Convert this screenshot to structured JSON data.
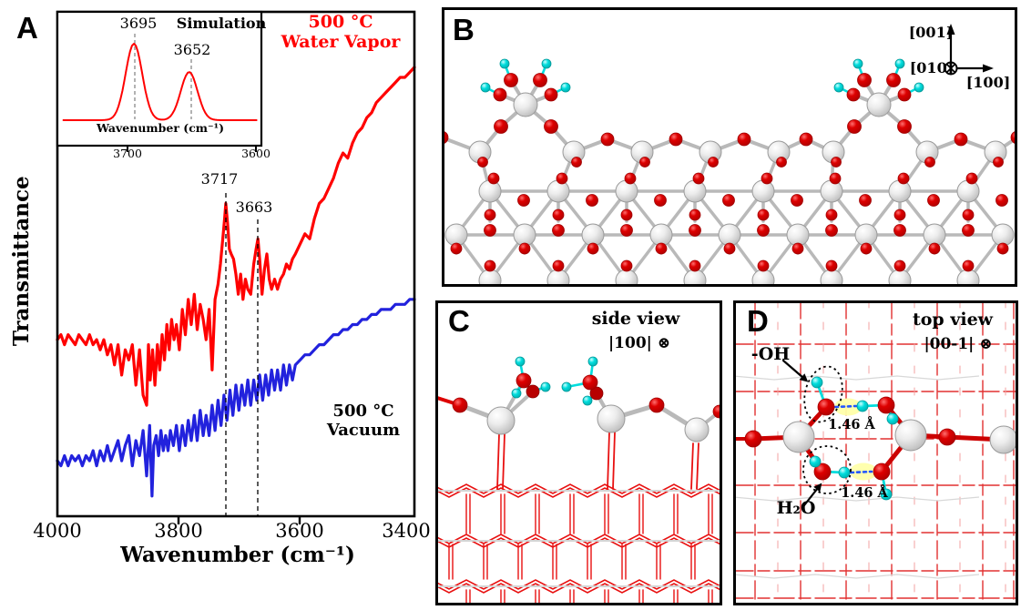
{
  "panels": {
    "a": {
      "letter": "A",
      "ylabel": "Transmittance",
      "xlabel": "Wavenumber (cm⁻¹)",
      "x_ticks": [
        "4000",
        "3800",
        "3600",
        "3400"
      ],
      "peak_labels": [
        "3717",
        "3663"
      ],
      "labels": {
        "water_vapor_line1": "500 °C",
        "water_vapor_line2": "Water Vapor",
        "vacuum_line1": "500 °C",
        "vacuum_line2": "Vacuum"
      },
      "inset": {
        "title": "Simulation",
        "peaks": [
          "3695",
          "3652"
        ],
        "xlabel": "Wavenumber (cm⁻¹)",
        "x_ticks": [
          "3700",
          "3600"
        ]
      }
    },
    "b": {
      "letter": "B",
      "axis_labels": {
        "up": "[001]",
        "into_page": "[010]",
        "right": "[100]"
      }
    },
    "c": {
      "letter": "C",
      "view_label": "side view",
      "orientation_label": "|100| ⊗"
    },
    "d": {
      "letter": "D",
      "view_label": "top view",
      "orientation_label": "|00-1| ⊗",
      "oh_label": "-OH",
      "h2o_label": "H₂O",
      "bond_length_top": "1.46 Å",
      "bond_length_bottom": "1.46 Å"
    }
  },
  "chart_data": {
    "type": "line",
    "xlabel": "Wavenumber (cm⁻¹)",
    "ylabel": "Transmittance",
    "x_range": [
      4000,
      3400
    ],
    "x_axis_reversed": true,
    "y_unit": "arbitrary units 0-100",
    "annotations": [
      {
        "x": 3717,
        "label": "3717"
      },
      {
        "x": 3663,
        "label": "3663"
      }
    ],
    "series": [
      {
        "name": "500 °C Water Vapor",
        "color": "#ff0000",
        "points": [
          [
            4000,
            35
          ],
          [
            3994,
            36
          ],
          [
            3988,
            34
          ],
          [
            3982,
            36
          ],
          [
            3976,
            35
          ],
          [
            3970,
            34
          ],
          [
            3964,
            36
          ],
          [
            3958,
            35
          ],
          [
            3952,
            34
          ],
          [
            3946,
            36
          ],
          [
            3940,
            34
          ],
          [
            3934,
            35
          ],
          [
            3928,
            33
          ],
          [
            3922,
            35
          ],
          [
            3916,
            32
          ],
          [
            3910,
            34
          ],
          [
            3904,
            30
          ],
          [
            3898,
            34
          ],
          [
            3892,
            28
          ],
          [
            3886,
            33
          ],
          [
            3880,
            31
          ],
          [
            3874,
            34
          ],
          [
            3868,
            26
          ],
          [
            3862,
            33
          ],
          [
            3856,
            24
          ],
          [
            3850,
            22
          ],
          [
            3847,
            34
          ],
          [
            3844,
            27
          ],
          [
            3840,
            33
          ],
          [
            3836,
            26
          ],
          [
            3832,
            34
          ],
          [
            3828,
            29
          ],
          [
            3824,
            36
          ],
          [
            3820,
            31
          ],
          [
            3816,
            38
          ],
          [
            3812,
            33
          ],
          [
            3808,
            39
          ],
          [
            3804,
            35
          ],
          [
            3800,
            38
          ],
          [
            3795,
            33
          ],
          [
            3790,
            41
          ],
          [
            3785,
            36
          ],
          [
            3780,
            43
          ],
          [
            3775,
            38
          ],
          [
            3770,
            44
          ],
          [
            3765,
            37
          ],
          [
            3760,
            42
          ],
          [
            3755,
            39
          ],
          [
            3750,
            35
          ],
          [
            3745,
            41
          ],
          [
            3740,
            29
          ],
          [
            3735,
            43
          ],
          [
            3730,
            46
          ],
          [
            3726,
            50
          ],
          [
            3722,
            55
          ],
          [
            3719,
            59
          ],
          [
            3717,
            62
          ],
          [
            3714,
            58
          ],
          [
            3711,
            53
          ],
          [
            3708,
            52
          ],
          [
            3704,
            51
          ],
          [
            3700,
            48
          ],
          [
            3696,
            44
          ],
          [
            3692,
            48
          ],
          [
            3688,
            43
          ],
          [
            3684,
            47
          ],
          [
            3680,
            45
          ],
          [
            3675,
            44
          ],
          [
            3670,
            50
          ],
          [
            3666,
            53
          ],
          [
            3663,
            55
          ],
          [
            3660,
            51
          ],
          [
            3656,
            44
          ],
          [
            3652,
            49
          ],
          [
            3648,
            52
          ],
          [
            3644,
            47
          ],
          [
            3640,
            45
          ],
          [
            3635,
            47
          ],
          [
            3630,
            45
          ],
          [
            3625,
            47
          ],
          [
            3620,
            48
          ],
          [
            3615,
            50
          ],
          [
            3610,
            49
          ],
          [
            3605,
            51
          ],
          [
            3600,
            52
          ],
          [
            3592,
            54
          ],
          [
            3584,
            56
          ],
          [
            3576,
            55
          ],
          [
            3568,
            59
          ],
          [
            3560,
            62
          ],
          [
            3552,
            63
          ],
          [
            3544,
            65
          ],
          [
            3536,
            67
          ],
          [
            3528,
            70
          ],
          [
            3520,
            72
          ],
          [
            3512,
            71
          ],
          [
            3504,
            74
          ],
          [
            3496,
            76
          ],
          [
            3488,
            77
          ],
          [
            3480,
            79
          ],
          [
            3472,
            80
          ],
          [
            3464,
            82
          ],
          [
            3456,
            83
          ],
          [
            3448,
            84
          ],
          [
            3440,
            85
          ],
          [
            3432,
            86
          ],
          [
            3424,
            87
          ],
          [
            3416,
            87
          ],
          [
            3408,
            88
          ],
          [
            3400,
            89
          ]
        ]
      },
      {
        "name": "500 °C Vacuum",
        "color": "#2222dd",
        "points": [
          [
            4000,
            11
          ],
          [
            3994,
            10
          ],
          [
            3988,
            12
          ],
          [
            3982,
            10
          ],
          [
            3976,
            12
          ],
          [
            3970,
            11
          ],
          [
            3964,
            12
          ],
          [
            3958,
            10
          ],
          [
            3952,
            12
          ],
          [
            3946,
            11
          ],
          [
            3940,
            13
          ],
          [
            3934,
            10
          ],
          [
            3928,
            13
          ],
          [
            3922,
            11
          ],
          [
            3916,
            14
          ],
          [
            3910,
            11
          ],
          [
            3904,
            13
          ],
          [
            3898,
            15
          ],
          [
            3892,
            11
          ],
          [
            3886,
            14
          ],
          [
            3880,
            16
          ],
          [
            3874,
            10
          ],
          [
            3868,
            15
          ],
          [
            3862,
            12
          ],
          [
            3856,
            17
          ],
          [
            3850,
            8
          ],
          [
            3845,
            18
          ],
          [
            3841,
            4
          ],
          [
            3838,
            14
          ],
          [
            3834,
            16
          ],
          [
            3830,
            12
          ],
          [
            3826,
            17
          ],
          [
            3822,
            13
          ],
          [
            3818,
            16
          ],
          [
            3814,
            13
          ],
          [
            3810,
            17
          ],
          [
            3805,
            14
          ],
          [
            3800,
            18
          ],
          [
            3795,
            13
          ],
          [
            3790,
            18
          ],
          [
            3785,
            14
          ],
          [
            3780,
            19
          ],
          [
            3775,
            15
          ],
          [
            3770,
            20
          ],
          [
            3765,
            15
          ],
          [
            3760,
            21
          ],
          [
            3755,
            16
          ],
          [
            3750,
            20
          ],
          [
            3745,
            16
          ],
          [
            3740,
            22
          ],
          [
            3735,
            17
          ],
          [
            3730,
            23
          ],
          [
            3725,
            18
          ],
          [
            3720,
            24
          ],
          [
            3715,
            19
          ],
          [
            3710,
            25
          ],
          [
            3705,
            20
          ],
          [
            3700,
            26
          ],
          [
            3695,
            21
          ],
          [
            3690,
            26
          ],
          [
            3685,
            22
          ],
          [
            3680,
            27
          ],
          [
            3675,
            22
          ],
          [
            3670,
            27
          ],
          [
            3665,
            23
          ],
          [
            3660,
            28
          ],
          [
            3655,
            23
          ],
          [
            3650,
            28
          ],
          [
            3645,
            24
          ],
          [
            3640,
            29
          ],
          [
            3635,
            25
          ],
          [
            3630,
            29
          ],
          [
            3625,
            25
          ],
          [
            3620,
            30
          ],
          [
            3615,
            26
          ],
          [
            3610,
            30
          ],
          [
            3605,
            27
          ],
          [
            3600,
            30
          ],
          [
            3592,
            31
          ],
          [
            3584,
            32
          ],
          [
            3576,
            32
          ],
          [
            3568,
            33
          ],
          [
            3560,
            34
          ],
          [
            3552,
            34
          ],
          [
            3544,
            35
          ],
          [
            3536,
            36
          ],
          [
            3528,
            36
          ],
          [
            3520,
            37
          ],
          [
            3512,
            37
          ],
          [
            3504,
            38
          ],
          [
            3496,
            38
          ],
          [
            3488,
            39
          ],
          [
            3480,
            39
          ],
          [
            3472,
            40
          ],
          [
            3464,
            40
          ],
          [
            3456,
            41
          ],
          [
            3448,
            41
          ],
          [
            3440,
            41
          ],
          [
            3432,
            42
          ],
          [
            3424,
            42
          ],
          [
            3416,
            42
          ],
          [
            3408,
            43
          ],
          [
            3400,
            43
          ]
        ]
      }
    ],
    "inset": {
      "title": "Simulation",
      "type": "line",
      "xlabel": "Wavenumber (cm⁻¹)",
      "x_range": [
        3755,
        3595
      ],
      "x_ticks": [
        3700,
        3600
      ],
      "peaks": [
        {
          "center": 3695,
          "height": 1.0,
          "sigma": 6.5,
          "label": "3695"
        },
        {
          "center": 3652,
          "height": 0.63,
          "sigma": 6.5,
          "label": "3652"
        }
      ]
    }
  },
  "colors": {
    "spectrum_red": "#ff0000",
    "spectrum_blue": "#2222dd",
    "oxygen_red": "#dd0000",
    "oxygen_dark": "#b80000",
    "hydrogen_cyan": "#00dddd",
    "metal_gray": "#d9d9d9",
    "bond_gray": "#b9b9b9",
    "hbond_blue": "#2255ff",
    "highlight_yellow": "#ffffaa",
    "wireframe_red": "#e81010",
    "grid_red": "#e23030"
  }
}
